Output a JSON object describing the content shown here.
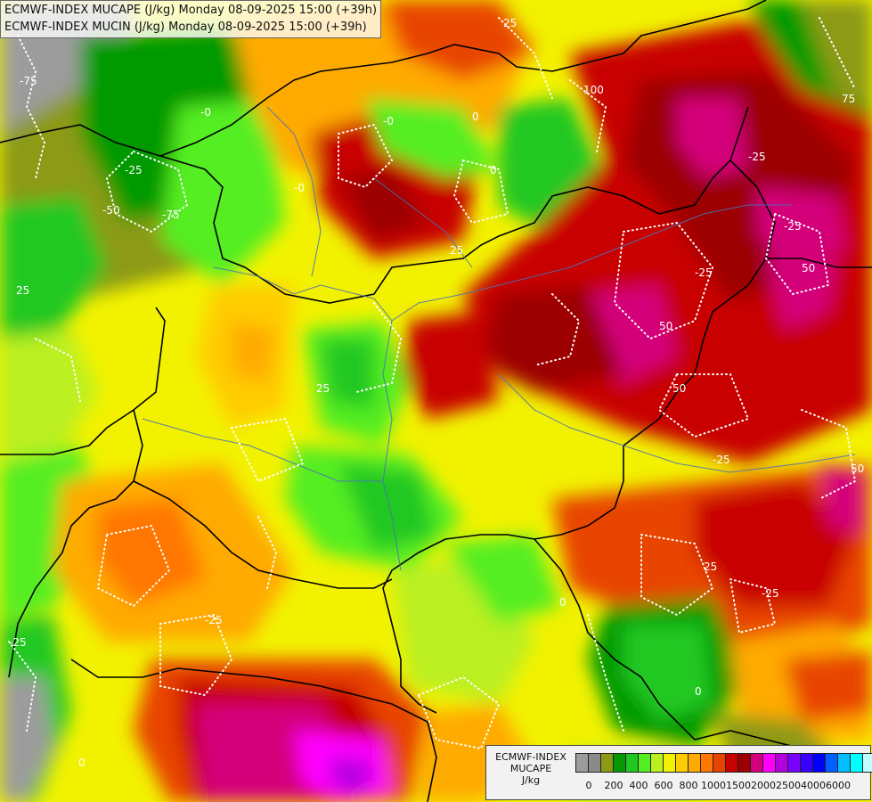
{
  "header": {
    "line1": "ECMWF-INDEX MUCAPE (J/kg) Monday 08-09-2025 15:00 (+39h)",
    "line2": "ECMWF-INDEX MUCIN (J/kg) Monday 08-09-2025 15:00 (+39h)"
  },
  "legend": {
    "title_line1": "ECMWF-INDEX",
    "title_line2": "MUCAPE",
    "title_line3": "J/kg",
    "colors": [
      "#9c9c9c",
      "#8a8a8a",
      "#8c9a14",
      "#059a05",
      "#22c822",
      "#55ee22",
      "#bbf020",
      "#f2f200",
      "#ffcc00",
      "#ffaa00",
      "#ff7700",
      "#e84400",
      "#c80000",
      "#9c0000",
      "#d4007a",
      "#ff00ff",
      "#b400e0",
      "#7a00ff",
      "#3a00ff",
      "#0000ff",
      "#0060ff",
      "#00bfff",
      "#00ffff",
      "#bfffff",
      "#ffffff"
    ],
    "ticks": [
      "0",
      "200",
      "400",
      "600",
      "800",
      "1000",
      "1500",
      "2000",
      "2500",
      "4000",
      "6000"
    ]
  },
  "map": {
    "contour_labels": [
      "25",
      "-25",
      "50",
      "-50",
      "75",
      "-75",
      "100",
      "-100",
      "0",
      "-0"
    ]
  }
}
